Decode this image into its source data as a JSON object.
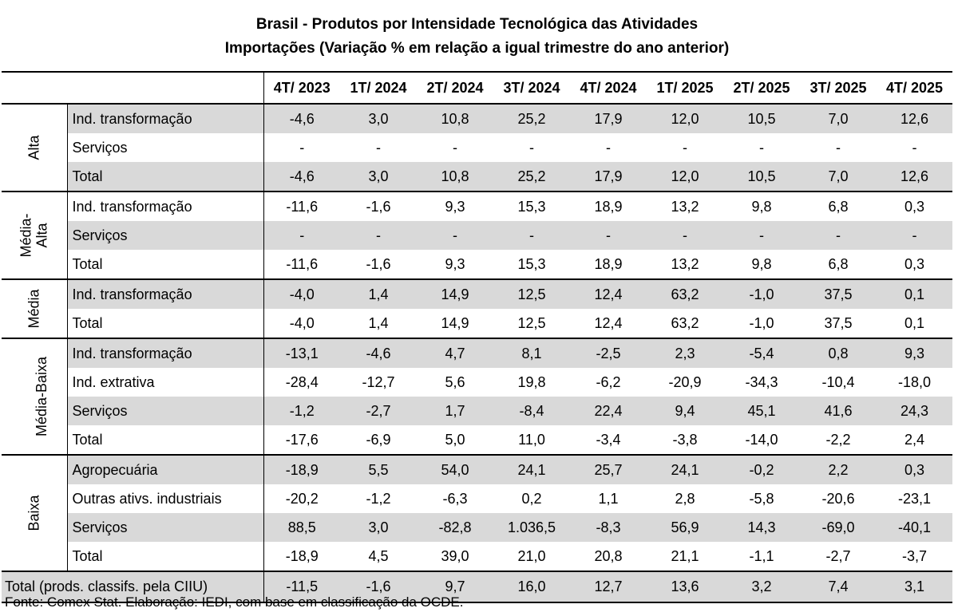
{
  "title": {
    "line1": "Brasil - Produtos por Intensidade Tecnológica das Atividades",
    "line2": "Importações (Variação % em relação a igual trimestre do ano anterior)"
  },
  "columns": [
    "4T/ 2023",
    "1T/ 2024",
    "2T/ 2024",
    "3T/ 2024",
    "4T/ 2024",
    "1T/ 2025",
    "2T/ 2025",
    "3T/ 2025",
    "4T/ 2025"
  ],
  "groups": [
    {
      "name": "Alta",
      "rows": [
        {
          "label": "Ind. transformação",
          "values": [
            "-4,6",
            "3,0",
            "10,8",
            "25,2",
            "17,9",
            "12,0",
            "10,5",
            "7,0",
            "12,6"
          ]
        },
        {
          "label": "Serviços",
          "values": [
            "-",
            "-",
            "-",
            "-",
            "-",
            "-",
            "-",
            "-",
            "-"
          ]
        },
        {
          "label": "Total",
          "values": [
            "-4,6",
            "3,0",
            "10,8",
            "25,2",
            "17,9",
            "12,0",
            "10,5",
            "7,0",
            "12,6"
          ]
        }
      ]
    },
    {
      "name": "Média-\nAlta",
      "rows": [
        {
          "label": "Ind. transformação",
          "values": [
            "-11,6",
            "-1,6",
            "9,3",
            "15,3",
            "18,9",
            "13,2",
            "9,8",
            "6,8",
            "0,3"
          ]
        },
        {
          "label": "Serviços",
          "values": [
            "-",
            "-",
            "-",
            "-",
            "-",
            "-",
            "-",
            "-",
            "-"
          ]
        },
        {
          "label": "Total",
          "values": [
            "-11,6",
            "-1,6",
            "9,3",
            "15,3",
            "18,9",
            "13,2",
            "9,8",
            "6,8",
            "0,3"
          ]
        }
      ]
    },
    {
      "name": "Média",
      "rows": [
        {
          "label": "Ind. transformação",
          "values": [
            "-4,0",
            "1,4",
            "14,9",
            "12,5",
            "12,4",
            "63,2",
            "-1,0",
            "37,5",
            "0,1"
          ]
        },
        {
          "label": "Total",
          "values": [
            "-4,0",
            "1,4",
            "14,9",
            "12,5",
            "12,4",
            "63,2",
            "-1,0",
            "37,5",
            "0,1"
          ]
        }
      ]
    },
    {
      "name": "Média-Baixa",
      "rows": [
        {
          "label": "Ind. transformação",
          "values": [
            "-13,1",
            "-4,6",
            "4,7",
            "8,1",
            "-2,5",
            "2,3",
            "-5,4",
            "0,8",
            "9,3"
          ]
        },
        {
          "label": "Ind. extrativa",
          "values": [
            "-28,4",
            "-12,7",
            "5,6",
            "19,8",
            "-6,2",
            "-20,9",
            "-34,3",
            "-10,4",
            "-18,0"
          ]
        },
        {
          "label": "Serviços",
          "values": [
            "-1,2",
            "-2,7",
            "1,7",
            "-8,4",
            "22,4",
            "9,4",
            "45,1",
            "41,6",
            "24,3"
          ]
        },
        {
          "label": "Total",
          "values": [
            "-17,6",
            "-6,9",
            "5,0",
            "11,0",
            "-3,4",
            "-3,8",
            "-14,0",
            "-2,2",
            "2,4"
          ]
        }
      ]
    },
    {
      "name": "Baixa",
      "rows": [
        {
          "label": "Agropecuária",
          "values": [
            "-18,9",
            "5,5",
            "54,0",
            "24,1",
            "25,7",
            "24,1",
            "-0,2",
            "2,2",
            "0,3"
          ]
        },
        {
          "label": "Outras ativs. industriais",
          "values": [
            "-20,2",
            "-1,2",
            "-6,3",
            "0,2",
            "1,1",
            "2,8",
            "-5,8",
            "-20,6",
            "-23,1"
          ]
        },
        {
          "label": "Serviços",
          "values": [
            "88,5",
            "3,0",
            "-82,8",
            "1.036,5",
            "-8,3",
            "56,9",
            "14,3",
            "-69,0",
            "-40,1"
          ]
        },
        {
          "label": "Total",
          "values": [
            "-18,9",
            "4,5",
            "39,0",
            "21,0",
            "20,8",
            "21,1",
            "-1,1",
            "-2,7",
            "-3,7"
          ]
        }
      ]
    }
  ],
  "total_row": {
    "label": "Total (prods. classifs. pela CIIU)",
    "values": [
      "-11,5",
      "-1,6",
      "9,7",
      "16,0",
      "12,7",
      "13,6",
      "3,2",
      "7,4",
      "3,1"
    ]
  },
  "source": "Fonte: Comex Stat. Elaboração: IEDI, com base em classificação da OCDE."
}
